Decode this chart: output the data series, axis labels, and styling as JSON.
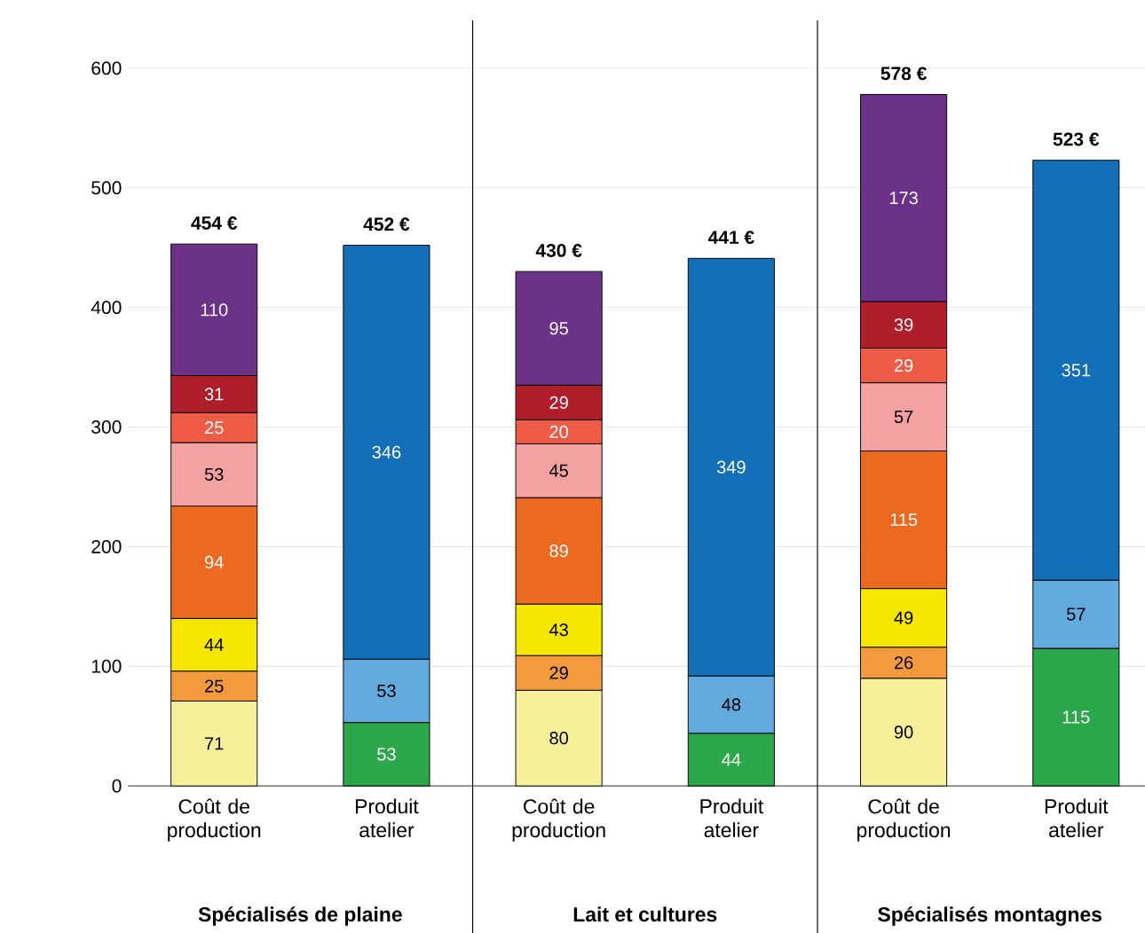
{
  "chart_data": {
    "type": "bar",
    "stacked": true,
    "data_labels": true,
    "grid": "y",
    "categories": [
      "Coût de production",
      "Produit atelier",
      "Coût de production",
      "Produit atelier",
      "Coût de production",
      "Produit atelier"
    ],
    "series": [
      {
        "color": "#f7f09a",
        "values": [
          71,
          null,
          80,
          null,
          90,
          null
        ]
      },
      {
        "color": "#f39a3c",
        "values": [
          25,
          null,
          29,
          null,
          26,
          null
        ]
      },
      {
        "color": "#f6e600",
        "values": [
          44,
          null,
          43,
          null,
          49,
          null
        ]
      },
      {
        "color": "#ec6a1f",
        "values": [
          94,
          null,
          89,
          null,
          115,
          null
        ]
      },
      {
        "color": "#f4a1a1",
        "values": [
          53,
          null,
          45,
          null,
          57,
          null
        ]
      },
      {
        "color": "#ee5c46",
        "values": [
          25,
          null,
          20,
          null,
          29,
          null
        ]
      },
      {
        "color": "#b01e2c",
        "values": [
          31,
          null,
          29,
          null,
          39,
          null
        ]
      },
      {
        "color": "#6c3288",
        "values": [
          110,
          null,
          95,
          null,
          173,
          null
        ]
      },
      {
        "color": "#2ca74c",
        "values": [
          null,
          53,
          null,
          44,
          null,
          115
        ]
      },
      {
        "color": "#62aade",
        "values": [
          null,
          53,
          null,
          48,
          null,
          57
        ]
      },
      {
        "color": "#146fb9",
        "values": [
          null,
          346,
          null,
          349,
          null,
          351
        ]
      }
    ],
    "totals": [
      "454 €",
      "452 €",
      "430 €",
      "441 €",
      "578 €",
      "523 €"
    ],
    "ylim": [
      0,
      640
    ],
    "yticks": [
      0,
      100,
      200,
      300,
      400,
      500,
      600
    ],
    "annotations": [
      "Spécialisés de plaine",
      "Lait et cultures",
      "Spécialisés montagnes"
    ]
  }
}
